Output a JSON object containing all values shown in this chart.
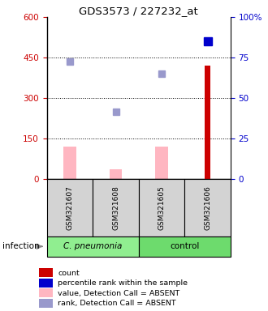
{
  "title": "GDS3573 / 227232_at",
  "samples": [
    "GSM321607",
    "GSM321608",
    "GSM321605",
    "GSM321606"
  ],
  "count_values": [
    0,
    0,
    0,
    420
  ],
  "value_absent": [
    120,
    35,
    120,
    0
  ],
  "rank_absent": [
    435,
    250,
    390,
    0
  ],
  "percentile_rank_pct": [
    0,
    0,
    0,
    85
  ],
  "ylim_left": [
    0,
    600
  ],
  "ylim_right": [
    0,
    100
  ],
  "yticks_left": [
    0,
    150,
    300,
    450,
    600
  ],
  "yticks_right": [
    0,
    25,
    50,
    75,
    100
  ],
  "bar_color_count": "#cc0000",
  "bar_color_absent": "#FFB6C1",
  "dot_color_percentile": "#0000cc",
  "dot_color_rank_absent": "#9999CC",
  "left_label_color": "#cc0000",
  "right_label_color": "#0000cc",
  "infection_label": "infection",
  "group1_label": "C. pneumonia",
  "group2_label": "control",
  "group1_color": "#90EE90",
  "group2_color": "#6DDB6D",
  "sample_box_color": "#D3D3D3",
  "legend_items": [
    {
      "color": "#cc0000",
      "label": "count"
    },
    {
      "color": "#0000cc",
      "label": "percentile rank within the sample"
    },
    {
      "color": "#FFB6C1",
      "label": "value, Detection Call = ABSENT"
    },
    {
      "color": "#9999CC",
      "label": "rank, Detection Call = ABSENT"
    }
  ]
}
